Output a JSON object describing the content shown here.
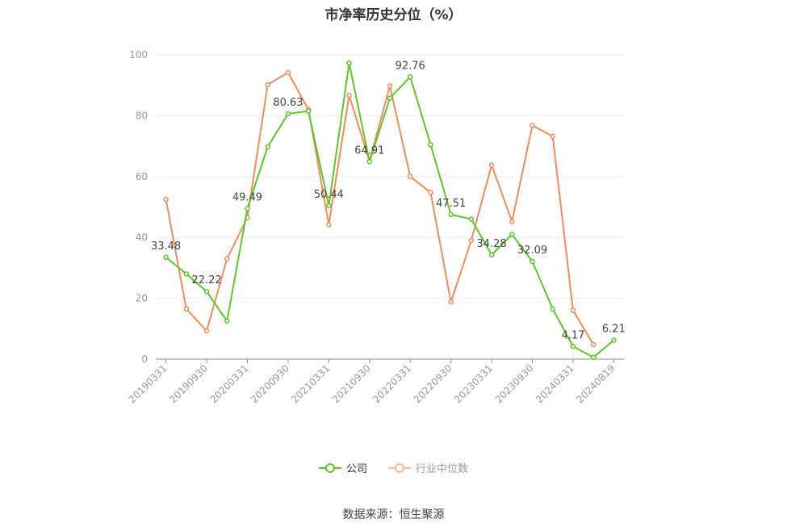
{
  "chart_data": {
    "type": "line",
    "title": "市净率历史分位（%）",
    "source": "数据来源：恒生聚源",
    "ylim": [
      0,
      100
    ],
    "yticks": [
      0,
      20,
      40,
      60,
      80,
      100
    ],
    "grid": true,
    "legend_placement": "bottom",
    "x": [
      "20190331",
      "20190630",
      "20190930",
      "20191231",
      "20200331",
      "20200630",
      "20200930",
      "20201231",
      "20210331",
      "20210630",
      "20210930",
      "20211231",
      "20220331",
      "20220630",
      "20220930",
      "20221231",
      "20230331",
      "20230630",
      "20230930",
      "20231231",
      "20240331",
      "20240630",
      "20240819"
    ],
    "xtick_labels": [
      "20190331",
      "20190930",
      "20200331",
      "20200930",
      "20210331",
      "20210930",
      "20220331",
      "20220930",
      "20230331",
      "20230930",
      "20240331",
      "20240819"
    ],
    "series": [
      {
        "name": "公司",
        "color": "#5ec52b",
        "values": [
          33.48,
          28,
          22.22,
          12.5,
          49.49,
          69.8,
          80.63,
          81.5,
          50.44,
          97.3,
          64.91,
          85.8,
          92.76,
          70.5,
          47.51,
          46,
          34.28,
          41,
          32.09,
          16.5,
          4.17,
          0.6,
          6.21
        ]
      },
      {
        "name": "行业中位数",
        "color": "#f28c5c",
        "values": [
          52.5,
          16.5,
          9.3,
          33,
          46.5,
          90.2,
          94.2,
          82,
          44.2,
          86.7,
          65,
          89.8,
          60,
          54.8,
          18.8,
          39,
          63.8,
          45.2,
          76.8,
          73.2,
          16,
          4.8,
          null
        ]
      }
    ],
    "data_labels": [
      {
        "series": 0,
        "index": 0,
        "text": "33.48"
      },
      {
        "series": 0,
        "index": 2,
        "text": "22.22"
      },
      {
        "series": 0,
        "index": 4,
        "text": "49.49"
      },
      {
        "series": 0,
        "index": 6,
        "text": "80.63"
      },
      {
        "series": 0,
        "index": 8,
        "text": "50.44"
      },
      {
        "series": 0,
        "index": 10,
        "text": "64.91"
      },
      {
        "series": 0,
        "index": 12,
        "text": "92.76"
      },
      {
        "series": 0,
        "index": 14,
        "text": "47.51"
      },
      {
        "series": 0,
        "index": 16,
        "text": "34.28"
      },
      {
        "series": 0,
        "index": 18,
        "text": "32.09"
      },
      {
        "series": 0,
        "index": 20,
        "text": "4.17"
      },
      {
        "series": 0,
        "index": 22,
        "text": "6.21"
      }
    ]
  }
}
